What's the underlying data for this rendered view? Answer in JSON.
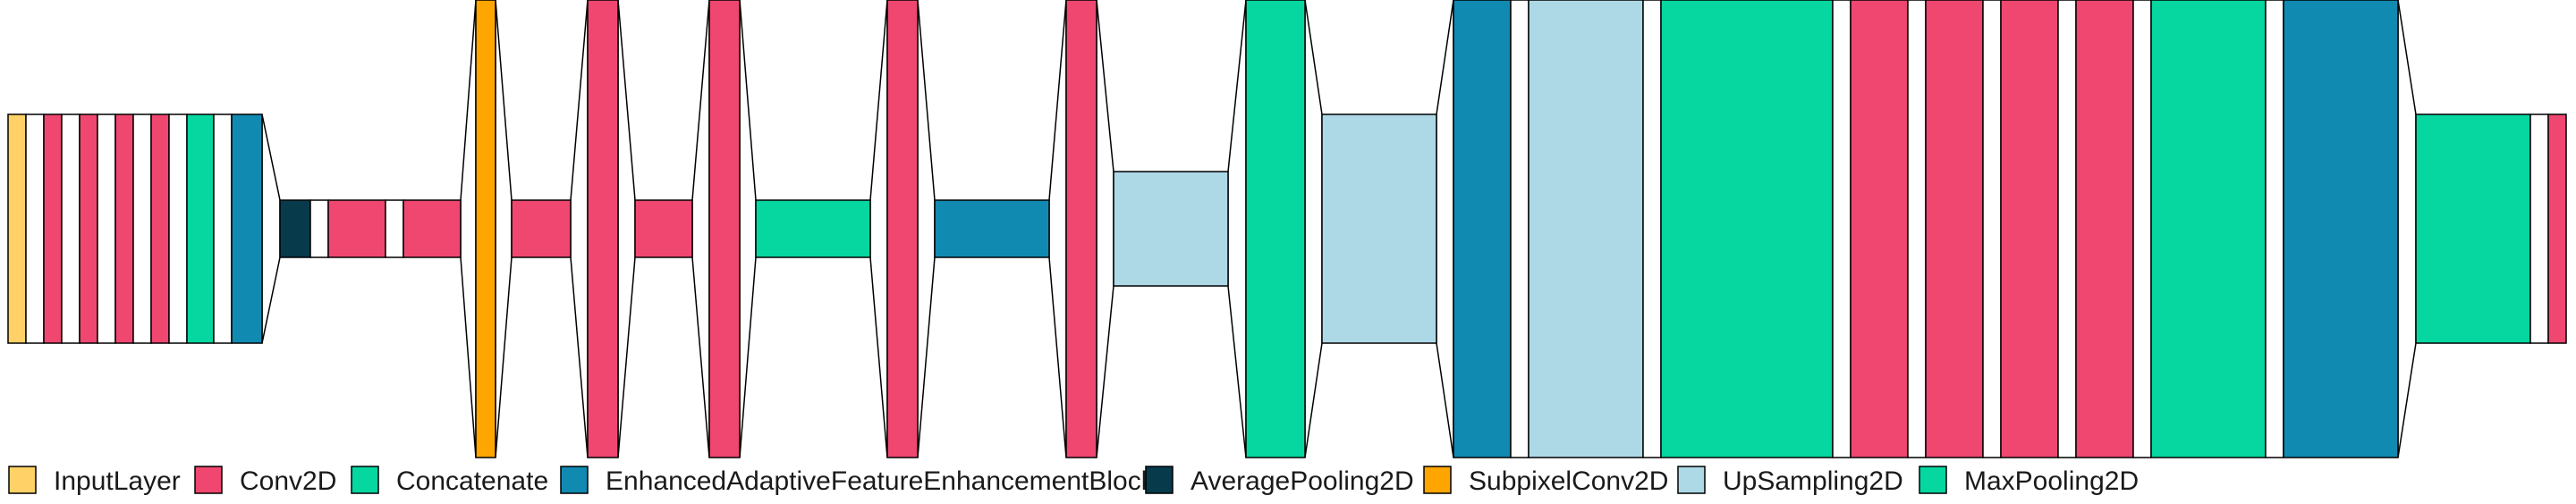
{
  "colors": {
    "InputLayer": "#ffd166",
    "Conv2D": "#ef476f",
    "Concatenate": "#06d6a0",
    "EnhancedAdaptiveFeatureEnhancementBlock": "#118ab2",
    "AveragePooling2D": "#073b4c",
    "SubpixelConv2D": "#ffa500",
    "UpSampling2D": "#add8e6",
    "MaxPooling2D": "#06d6a0",
    "Other": "#ffffff",
    "Outline": "#000000"
  },
  "legend": [
    {
      "type": "InputLayer",
      "label": "InputLayer"
    },
    {
      "type": "Conv2D",
      "label": "Conv2D"
    },
    {
      "type": "Concatenate",
      "label": "Concatenate"
    },
    {
      "type": "EnhancedAdaptiveFeatureEnhancementBlock",
      "label": "EnhancedAdaptiveFeatureEnhancementBlock"
    },
    {
      "type": "AveragePooling2D",
      "label": "AveragePooling2D"
    },
    {
      "type": "SubpixelConv2D",
      "label": "SubpixelConv2D"
    },
    {
      "type": "UpSampling2D",
      "label": "UpSampling2D"
    },
    {
      "type": "MaxPooling2D",
      "label": "MaxPooling2D"
    }
  ],
  "layers": [
    "InputLayer",
    "Other",
    "Conv2D",
    "Other",
    "Conv2D",
    "Other",
    "Conv2D",
    "Other",
    "Conv2D",
    "Other",
    "Concatenate",
    "Other",
    "EnhancedAdaptiveFeatureEnhancementBlock",
    "AveragePooling2D",
    "Other",
    "Conv2D",
    "Other",
    "Conv2D",
    "SubpixelConv2D",
    "Conv2D",
    "Conv2D",
    "Conv2D",
    "Conv2D",
    "Concatenate",
    "Conv2D",
    "EnhancedAdaptiveFeatureEnhancementBlock",
    "Conv2D",
    "UpSampling2D",
    "MaxPooling2D",
    "UpSampling2D",
    "EnhancedAdaptiveFeatureEnhancementBlock",
    "Other",
    "UpSampling2D",
    "Other",
    "Concatenate",
    "Other",
    "Conv2D",
    "Other",
    "Conv2D",
    "Other",
    "Conv2D",
    "Other",
    "Conv2D",
    "Other",
    "Concatenate",
    "Other",
    "EnhancedAdaptiveFeatureEnhancementBlock",
    "Concatenate",
    "Other",
    "Conv2D"
  ]
}
